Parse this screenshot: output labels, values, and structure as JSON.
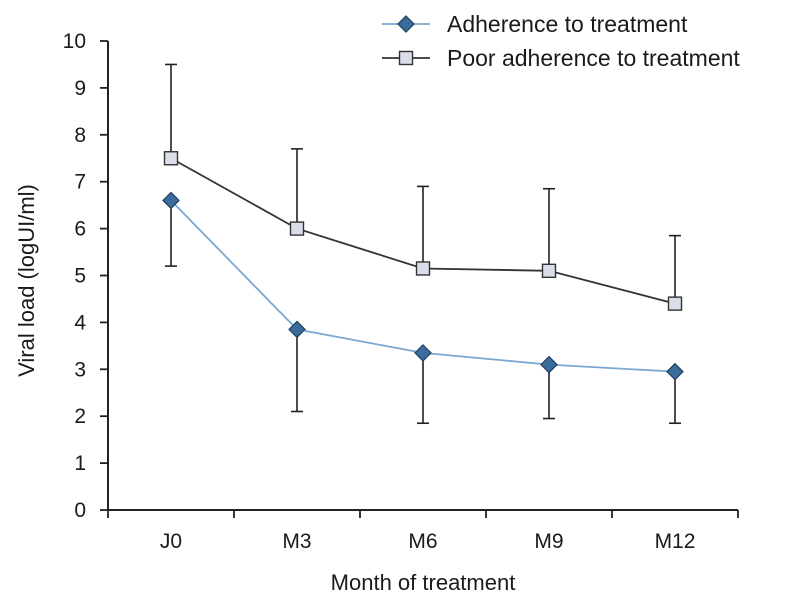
{
  "chart_data": {
    "type": "line",
    "title": "",
    "xlabel": "Month of treatment",
    "ylabel": "Viral load (logUI/ml)",
    "categories": [
      "J0",
      "M3",
      "M6",
      "M9",
      "M12"
    ],
    "ylim": [
      0,
      10
    ],
    "yticks": [
      0,
      1,
      2,
      3,
      4,
      5,
      6,
      7,
      8,
      9,
      10
    ],
    "grid": false,
    "legend_position": "top-right",
    "series": [
      {
        "name": "Adherence to treatment",
        "marker": "diamond",
        "line_color": "#7BA7D0",
        "marker_color": "#3A6D9E",
        "values": [
          6.6,
          3.85,
          3.35,
          3.1,
          2.95
        ],
        "error_direction": "down",
        "error": [
          1.4,
          1.75,
          1.5,
          1.15,
          1.1
        ]
      },
      {
        "name": "Poor adherence to treatment",
        "marker": "square",
        "line_color": "#333333",
        "marker_color": "#D9DEE8",
        "values": [
          7.5,
          6.0,
          5.15,
          5.1,
          4.4
        ],
        "error_direction": "up",
        "error": [
          2.0,
          1.7,
          1.75,
          1.75,
          1.45
        ]
      }
    ]
  }
}
